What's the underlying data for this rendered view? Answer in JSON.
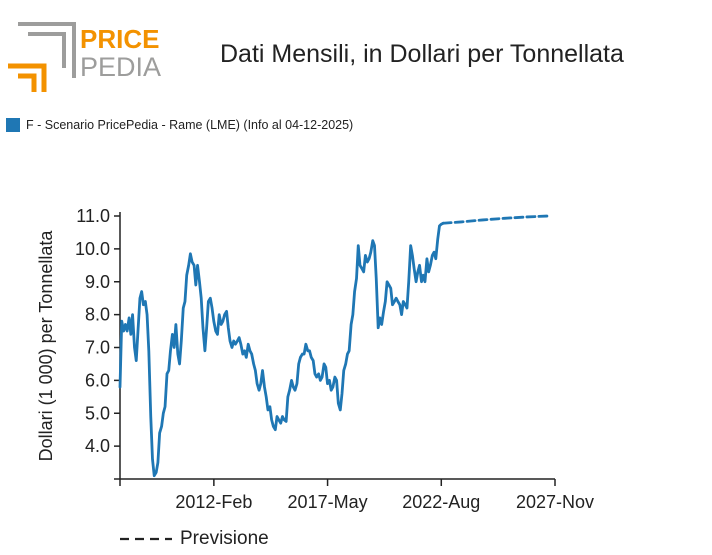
{
  "logo": {
    "line1": "PRICE",
    "line2": "PEDIA",
    "accent_color": "#f39200",
    "grey_color": "#9d9d9c"
  },
  "chart_data": {
    "type": "line",
    "title": "Dati Mensili, in Dollari per Tonnellata",
    "ylabel": "Dollari (1 000) per Tonnellata",
    "xlabel": "",
    "ylim": [
      3.0,
      11.0
    ],
    "xlim": [
      2007.75,
      2027.8333
    ],
    "y_ticks": [
      11.0,
      10.0,
      9.0,
      8.0,
      7.0,
      6.0,
      5.0,
      4.0
    ],
    "y_tick_labels": [
      "11.0",
      "10.0",
      "9.0",
      "8.0",
      "7.0",
      "6.0",
      "5.0",
      "4.0"
    ],
    "x_ticks": [
      2012.0833,
      2017.3333,
      2022.5833,
      2027.8333
    ],
    "x_tick_labels": [
      "2012-Feb",
      "2017-May",
      "2022-Aug",
      "2027-Nov"
    ],
    "grid": false,
    "legend_position": "top-left",
    "series": [
      {
        "name": "F - Scenario PricePedia - Rame (LME) (Info al 04-12-2025)",
        "color": "#1f77b4",
        "style": "solid",
        "points": [
          [
            2007.75,
            5.8
          ],
          [
            2007.83,
            7.8
          ],
          [
            2007.92,
            7.5
          ],
          [
            2008.0,
            7.7
          ],
          [
            2008.08,
            7.5
          ],
          [
            2008.17,
            7.9
          ],
          [
            2008.25,
            7.4
          ],
          [
            2008.33,
            8.0
          ],
          [
            2008.42,
            7.0
          ],
          [
            2008.5,
            6.6
          ],
          [
            2008.58,
            7.5
          ],
          [
            2008.67,
            8.5
          ],
          [
            2008.75,
            8.7
          ],
          [
            2008.83,
            8.3
          ],
          [
            2008.92,
            8.4
          ],
          [
            2009.0,
            8.0
          ],
          [
            2009.08,
            6.9
          ],
          [
            2009.17,
            4.9
          ],
          [
            2009.25,
            3.6
          ],
          [
            2009.33,
            3.1
          ],
          [
            2009.42,
            3.2
          ],
          [
            2009.5,
            3.5
          ],
          [
            2009.58,
            4.4
          ],
          [
            2009.67,
            4.6
          ],
          [
            2009.75,
            5.0
          ],
          [
            2009.83,
            5.2
          ],
          [
            2009.92,
            6.2
          ],
          [
            2010.0,
            6.3
          ],
          [
            2010.08,
            6.9
          ],
          [
            2010.17,
            7.4
          ],
          [
            2010.25,
            7.0
          ],
          [
            2010.33,
            7.7
          ],
          [
            2010.42,
            6.8
          ],
          [
            2010.5,
            6.5
          ],
          [
            2010.58,
            7.2
          ],
          [
            2010.67,
            8.2
          ],
          [
            2010.75,
            8.4
          ],
          [
            2010.83,
            9.2
          ],
          [
            2010.92,
            9.5
          ],
          [
            2011.0,
            9.85
          ],
          [
            2011.08,
            9.6
          ],
          [
            2011.17,
            9.5
          ],
          [
            2011.25,
            8.9
          ],
          [
            2011.33,
            9.5
          ],
          [
            2011.42,
            9.0
          ],
          [
            2011.5,
            8.5
          ],
          [
            2011.58,
            7.6
          ],
          [
            2011.67,
            6.9
          ],
          [
            2011.75,
            7.6
          ],
          [
            2011.83,
            8.4
          ],
          [
            2011.92,
            8.5
          ],
          [
            2012.0,
            8.2
          ],
          [
            2012.08,
            7.8
          ],
          [
            2012.17,
            7.5
          ],
          [
            2012.25,
            7.4
          ],
          [
            2012.33,
            8.0
          ],
          [
            2012.42,
            7.7
          ],
          [
            2012.5,
            7.8
          ],
          [
            2012.58,
            8.0
          ],
          [
            2012.67,
            8.1
          ],
          [
            2012.75,
            7.6
          ],
          [
            2012.83,
            7.2
          ],
          [
            2012.92,
            7.0
          ],
          [
            2013.0,
            7.2
          ],
          [
            2013.08,
            7.1
          ],
          [
            2013.17,
            7.2
          ],
          [
            2013.25,
            7.3
          ],
          [
            2013.33,
            7.1
          ],
          [
            2013.42,
            6.8
          ],
          [
            2013.5,
            6.9
          ],
          [
            2013.58,
            6.7
          ],
          [
            2013.67,
            7.1
          ],
          [
            2013.75,
            6.9
          ],
          [
            2013.83,
            6.8
          ],
          [
            2013.92,
            6.5
          ],
          [
            2014.0,
            6.3
          ],
          [
            2014.08,
            5.9
          ],
          [
            2014.17,
            5.7
          ],
          [
            2014.25,
            5.9
          ],
          [
            2014.33,
            6.3
          ],
          [
            2014.42,
            5.8
          ],
          [
            2014.5,
            5.5
          ],
          [
            2014.58,
            5.1
          ],
          [
            2014.67,
            5.2
          ],
          [
            2014.75,
            4.8
          ],
          [
            2014.83,
            4.6
          ],
          [
            2014.92,
            4.5
          ],
          [
            2015.0,
            4.9
          ],
          [
            2015.08,
            4.8
          ],
          [
            2015.17,
            4.7
          ],
          [
            2015.25,
            4.9
          ],
          [
            2015.33,
            4.8
          ],
          [
            2015.42,
            4.75
          ],
          [
            2015.5,
            5.5
          ],
          [
            2015.58,
            5.7
          ],
          [
            2015.67,
            6.0
          ],
          [
            2015.75,
            5.8
          ],
          [
            2015.83,
            5.7
          ],
          [
            2015.92,
            5.9
          ],
          [
            2016.0,
            6.5
          ],
          [
            2016.08,
            6.7
          ],
          [
            2016.17,
            6.8
          ],
          [
            2016.25,
            6.8
          ],
          [
            2016.33,
            7.1
          ],
          [
            2016.42,
            6.9
          ],
          [
            2016.5,
            6.9
          ],
          [
            2016.58,
            6.7
          ],
          [
            2016.67,
            6.6
          ],
          [
            2016.75,
            6.2
          ],
          [
            2016.83,
            6.1
          ],
          [
            2016.92,
            6.2
          ],
          [
            2017.0,
            6.0
          ],
          [
            2017.08,
            6.1
          ],
          [
            2017.17,
            6.5
          ],
          [
            2017.25,
            6.4
          ],
          [
            2017.33,
            5.9
          ],
          [
            2017.42,
            6.0
          ],
          [
            2017.5,
            5.7
          ],
          [
            2017.58,
            5.8
          ],
          [
            2017.67,
            6.1
          ],
          [
            2017.75,
            6.0
          ],
          [
            2017.83,
            5.3
          ],
          [
            2017.92,
            5.1
          ],
          [
            2018.0,
            5.6
          ],
          [
            2018.08,
            6.3
          ],
          [
            2018.17,
            6.5
          ],
          [
            2018.25,
            6.8
          ],
          [
            2018.33,
            6.9
          ],
          [
            2018.42,
            7.7
          ],
          [
            2018.5,
            8.0
          ],
          [
            2018.58,
            8.7
          ],
          [
            2018.67,
            9.1
          ],
          [
            2018.75,
            10.1
          ],
          [
            2018.83,
            9.5
          ],
          [
            2018.92,
            9.4
          ],
          [
            2019.0,
            9.3
          ],
          [
            2019.08,
            9.8
          ],
          [
            2019.17,
            9.6
          ],
          [
            2019.25,
            9.7
          ],
          [
            2019.33,
            9.9
          ],
          [
            2019.42,
            10.25
          ],
          [
            2019.5,
            10.1
          ],
          [
            2019.58,
            9.1
          ],
          [
            2019.67,
            7.6
          ],
          [
            2019.75,
            7.9
          ],
          [
            2019.83,
            7.7
          ],
          [
            2019.92,
            8.1
          ],
          [
            2020.0,
            8.4
          ],
          [
            2020.08,
            9.0
          ],
          [
            2020.17,
            8.9
          ],
          [
            2020.25,
            8.8
          ],
          [
            2020.33,
            8.3
          ],
          [
            2020.42,
            8.4
          ],
          [
            2020.5,
            8.5
          ],
          [
            2020.58,
            8.4
          ],
          [
            2020.67,
            8.3
          ],
          [
            2020.75,
            8.0
          ],
          [
            2020.83,
            8.4
          ],
          [
            2020.92,
            8.3
          ],
          [
            2021.0,
            8.2
          ],
          [
            2021.08,
            9.0
          ],
          [
            2021.17,
            10.1
          ],
          [
            2021.25,
            9.8
          ],
          [
            2021.33,
            9.4
          ],
          [
            2021.42,
            9.0
          ],
          [
            2021.5,
            9.3
          ],
          [
            2021.58,
            9.5
          ],
          [
            2021.67,
            9.0
          ],
          [
            2021.75,
            9.2
          ],
          [
            2021.83,
            9.0
          ],
          [
            2021.92,
            9.7
          ],
          [
            2022.0,
            9.3
          ],
          [
            2022.08,
            9.5
          ],
          [
            2022.17,
            9.8
          ],
          [
            2022.25,
            9.9
          ],
          [
            2022.33,
            9.7
          ],
          [
            2022.42,
            10.3
          ],
          [
            2022.5,
            10.7
          ],
          [
            2022.58,
            10.75
          ],
          [
            2022.67,
            10.78
          ]
        ]
      },
      {
        "name": "Previsione",
        "color": "#1f77b4",
        "style": "dashed",
        "points": [
          [
            2022.67,
            10.78
          ],
          [
            2023.5,
            10.82
          ],
          [
            2024.5,
            10.88
          ],
          [
            2025.5,
            10.93
          ],
          [
            2026.5,
            10.97
          ],
          [
            2027.5,
            11.0
          ]
        ]
      }
    ],
    "legend": [
      {
        "label": "F - Scenario PricePedia - Rame (LME) (Info al 04-12-2025)",
        "color": "#1f77b4",
        "style": "swatch"
      }
    ],
    "forecast_legend": {
      "label": "Previsione",
      "style": "dashed",
      "color": "#222222"
    }
  }
}
